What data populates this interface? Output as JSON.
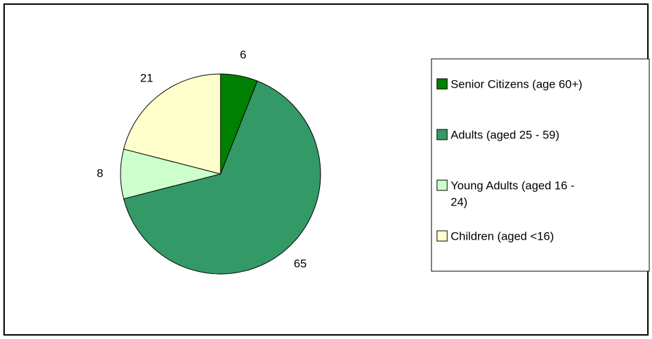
{
  "chart_data": {
    "type": "pie",
    "title": "",
    "start_angle_deg": 0,
    "direction": "clockwise",
    "slices": [
      {
        "label": "Senior Citizens (age 60+)",
        "value": 6,
        "color": "#008000"
      },
      {
        "label": "Adults (aged 25 - 59)",
        "value": 65,
        "color": "#339966"
      },
      {
        "label": "Young Adults (aged 16 - 24)",
        "value": 8,
        "color": "#CCFFCC"
      },
      {
        "label": "Children (aged <16)",
        "value": 21,
        "color": "#FFFFCC"
      }
    ],
    "legend": {
      "placement": "right",
      "entries": [
        {
          "lines": [
            "Senior Citizens (age 60+)"
          ]
        },
        {
          "lines": [
            "Adults (aged 25 - 59)"
          ]
        },
        {
          "lines": [
            "Young Adults (aged 16 -",
            "24)"
          ]
        },
        {
          "lines": [
            "Children (aged <16)"
          ]
        }
      ]
    }
  }
}
